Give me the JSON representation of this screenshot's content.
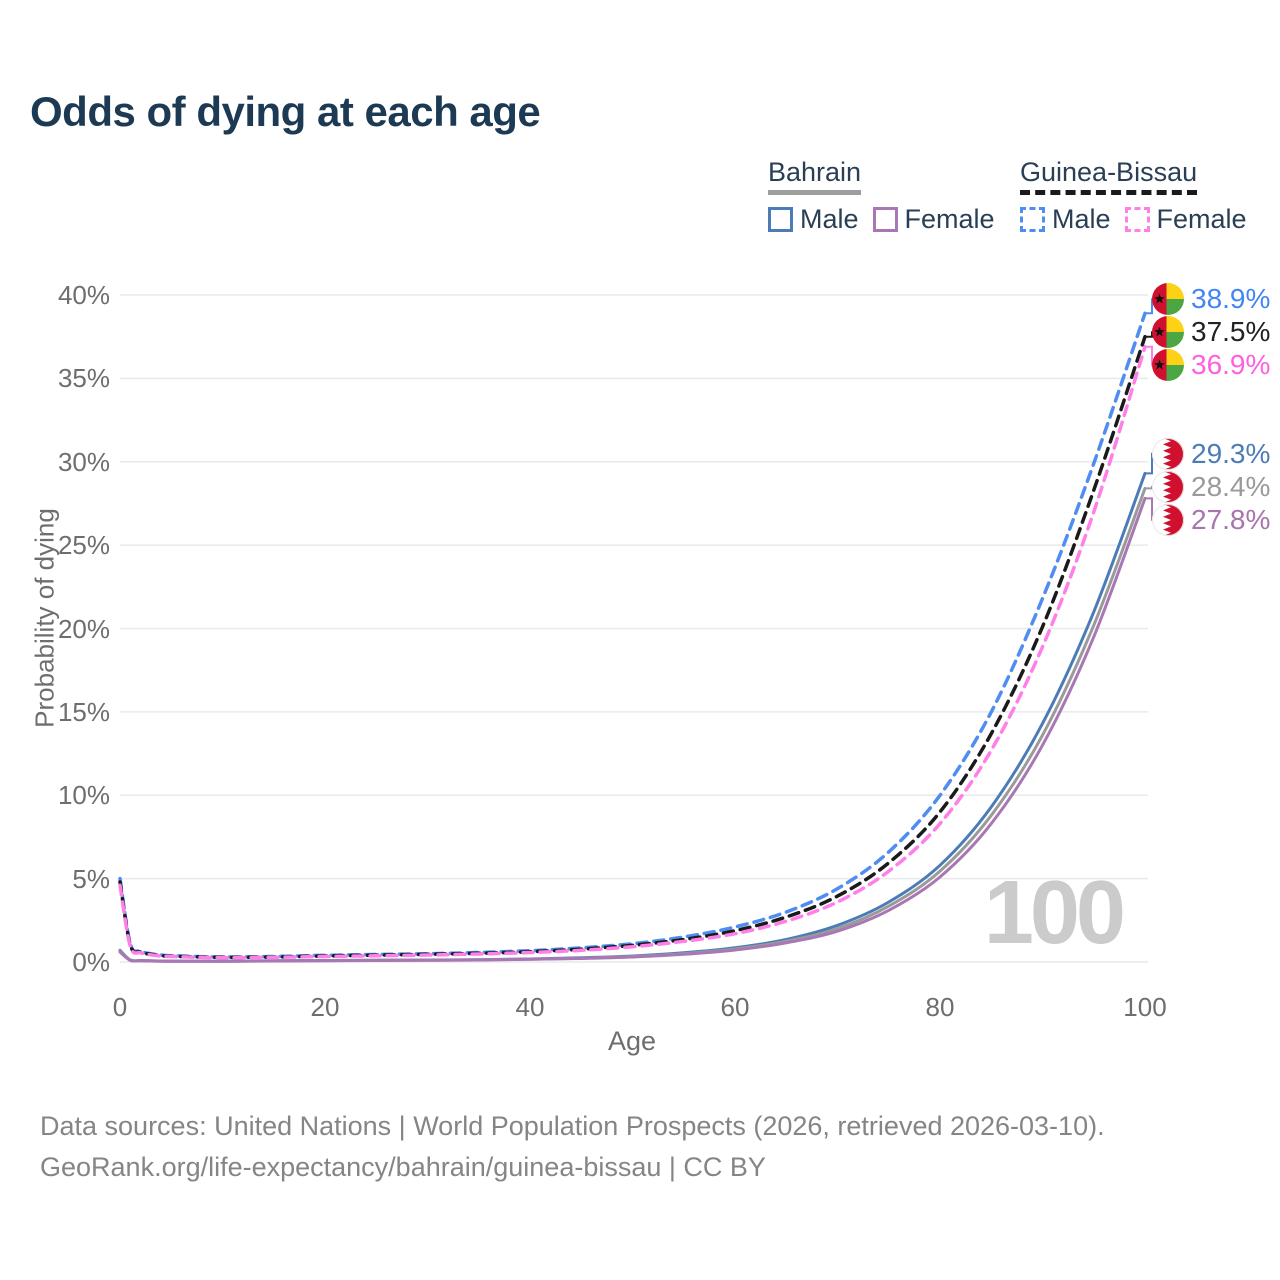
{
  "title": "Odds of dying at each age",
  "watermark": "100",
  "legend": {
    "groups": [
      {
        "name": "Bahrain",
        "line_style": "solid",
        "underline_color": "#9e9e9e",
        "entries": [
          {
            "label": "Male",
            "color": "#4b7cb8"
          },
          {
            "label": "Female",
            "color": "#a877b4"
          }
        ]
      },
      {
        "name": "Guinea-Bissau",
        "line_style": "dashed",
        "underline_color": "#1a1a1a",
        "entries": [
          {
            "label": "Male",
            "color": "#4f8df2"
          },
          {
            "label": "Female",
            "color": "#ff7fe8"
          }
        ]
      }
    ]
  },
  "footer": {
    "line1": "Data sources: United Nations | World Population Prospects (2026, retrieved 2026-03-10).",
    "line2": "GeoRank.org/life-expectancy/bahrain/guinea-bissau | CC BY"
  },
  "chart_data": {
    "type": "line",
    "title": "Odds of dying at each age",
    "xlabel": "Age",
    "ylabel": "Probability of dying",
    "xlim": [
      0,
      100
    ],
    "ylim": [
      0,
      40
    ],
    "grid": "horizontal",
    "legend_position": "top-right",
    "x_ticks": [
      {
        "v": 0,
        "label": "0"
      },
      {
        "v": 20,
        "label": "20"
      },
      {
        "v": 40,
        "label": "40"
      },
      {
        "v": 60,
        "label": "60"
      },
      {
        "v": 80,
        "label": "80"
      },
      {
        "v": 100,
        "label": "100"
      }
    ],
    "y_ticks": [
      {
        "v": 0,
        "label": "0%"
      },
      {
        "v": 5,
        "label": "5%"
      },
      {
        "v": 10,
        "label": "10%"
      },
      {
        "v": 15,
        "label": "15%"
      },
      {
        "v": 20,
        "label": "20%"
      },
      {
        "v": 25,
        "label": "25%"
      },
      {
        "v": 30,
        "label": "30%"
      },
      {
        "v": 35,
        "label": "35%"
      },
      {
        "v": 40,
        "label": "40%"
      }
    ],
    "ages": [
      0,
      1,
      2,
      3,
      4,
      5,
      10,
      15,
      20,
      25,
      30,
      35,
      40,
      45,
      50,
      55,
      60,
      65,
      70,
      75,
      80,
      85,
      90,
      95,
      100
    ],
    "series": [
      {
        "name": "Bahrain Male",
        "country": "Bahrain",
        "sex": "male",
        "style": "solid",
        "color": "#4b7cb8",
        "label_color": "#4b7cb8",
        "flag": "bahrain",
        "end_label": "29.3%",
        "end_value": 29.3,
        "values": [
          0.7,
          0.12,
          0.09,
          0.07,
          0.06,
          0.055,
          0.05,
          0.07,
          0.09,
          0.11,
          0.12,
          0.14,
          0.18,
          0.25,
          0.36,
          0.55,
          0.85,
          1.35,
          2.2,
          3.6,
          5.8,
          9.3,
          14.3,
          21.0,
          29.3
        ]
      },
      {
        "name": "Bahrain",
        "country": "Bahrain",
        "sex": "both",
        "style": "solid",
        "color": "#9a9a9a",
        "label_color": "#9a9a9a",
        "flag": "bahrain",
        "end_label": "28.4%",
        "end_value": 28.4,
        "values": [
          0.65,
          0.11,
          0.08,
          0.065,
          0.055,
          0.05,
          0.048,
          0.065,
          0.085,
          0.1,
          0.11,
          0.13,
          0.17,
          0.23,
          0.33,
          0.5,
          0.78,
          1.25,
          2.0,
          3.35,
          5.45,
          8.8,
          13.6,
          20.2,
          28.4
        ]
      },
      {
        "name": "Bahrain Female",
        "country": "Bahrain",
        "sex": "female",
        "style": "solid",
        "color": "#a877b4",
        "label_color": "#a873ae",
        "flag": "bahrain",
        "end_label": "27.8%",
        "end_value": 27.8,
        "values": [
          0.6,
          0.1,
          0.075,
          0.06,
          0.05,
          0.047,
          0.045,
          0.06,
          0.08,
          0.09,
          0.1,
          0.12,
          0.16,
          0.21,
          0.3,
          0.46,
          0.72,
          1.15,
          1.85,
          3.1,
          5.1,
          8.3,
          13.0,
          19.5,
          27.8
        ]
      },
      {
        "name": "Guinea-Bissau Male",
        "country": "Guinea-Bissau",
        "sex": "male",
        "style": "dashed",
        "color": "#4f8df2",
        "label_color": "#4285f4",
        "flag": "guinea-bissau",
        "end_label": "38.9%",
        "end_value": 38.9,
        "values": [
          5.0,
          1.1,
          0.65,
          0.5,
          0.42,
          0.38,
          0.3,
          0.33,
          0.4,
          0.45,
          0.5,
          0.57,
          0.68,
          0.85,
          1.1,
          1.5,
          2.1,
          3.0,
          4.4,
          6.6,
          10.0,
          15.0,
          21.8,
          29.9,
          38.9
        ]
      },
      {
        "name": "Guinea-Bissau",
        "country": "Guinea-Bissau",
        "sex": "both",
        "style": "dashed",
        "color": "#1a1a1a",
        "label_color": "#222222",
        "flag": "guinea-bissau",
        "end_label": "37.5%",
        "end_value": 37.5,
        "values": [
          4.8,
          1.02,
          0.6,
          0.46,
          0.39,
          0.35,
          0.28,
          0.3,
          0.36,
          0.41,
          0.46,
          0.52,
          0.62,
          0.77,
          1.0,
          1.35,
          1.88,
          2.7,
          3.95,
          5.95,
          9.0,
          13.7,
          20.1,
          28.3,
          37.5
        ]
      },
      {
        "name": "Guinea-Bissau Female",
        "country": "Guinea-Bissau",
        "sex": "female",
        "style": "dashed",
        "color": "#ff7fe8",
        "label_color": "#ff5fdf",
        "flag": "guinea-bissau",
        "end_label": "36.9%",
        "end_value": 36.9,
        "values": [
          4.6,
          0.95,
          0.56,
          0.43,
          0.36,
          0.33,
          0.26,
          0.28,
          0.33,
          0.37,
          0.42,
          0.48,
          0.57,
          0.7,
          0.92,
          1.24,
          1.7,
          2.45,
          3.6,
          5.45,
          8.3,
          12.7,
          18.9,
          27.0,
          36.9
        ]
      }
    ]
  }
}
